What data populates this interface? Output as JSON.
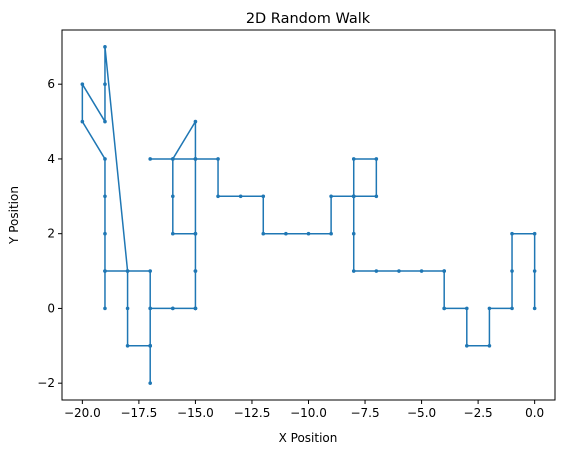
{
  "chart_data": {
    "type": "line",
    "title": "2D Random Walk",
    "xlabel": "X Position",
    "ylabel": "Y Position",
    "xlim": [
      -20.9,
      0.9
    ],
    "ylim": [
      -2.45,
      7.45
    ],
    "x_ticks": [
      -20,
      -17.5,
      -15,
      -12.5,
      -10,
      -7.5,
      -5,
      -2.5,
      0
    ],
    "x_tick_labels": [
      "−20.0",
      "−17.5",
      "−15.0",
      "−12.5",
      "−10.0",
      "−7.5",
      "−5.0",
      "−2.5",
      "0.0"
    ],
    "y_ticks": [
      -2,
      0,
      2,
      4,
      6
    ],
    "y_tick_labels": [
      "−2",
      "0",
      "2",
      "4",
      "6"
    ],
    "grid": false,
    "line_color": "#1f77b4",
    "series": [
      {
        "x": [
          0,
          0,
          0,
          -1,
          -1,
          -1,
          -2,
          -2,
          -3,
          -3,
          -4,
          -4,
          -4,
          -4,
          -5,
          -6,
          -7,
          -8,
          -8,
          -8,
          -8,
          -7,
          -7,
          -8,
          -8,
          -9,
          -9,
          -10,
          -11,
          -12,
          -12,
          -13,
          -14,
          -14,
          -15,
          -15,
          -16,
          -16,
          -16,
          -15,
          -15,
          -15,
          -15,
          -16,
          -17,
          -17,
          -17,
          -17,
          -17,
          -18,
          -18,
          -18,
          -19,
          -19,
          -19,
          -19,
          -19,
          -19,
          -20,
          -20,
          -19,
          -19,
          -19,
          -18,
          -17,
          -17,
          -16,
          -15,
          -15,
          -15,
          -15,
          -16,
          -17
        ],
        "y": [
          0,
          1,
          2,
          2,
          1,
          0,
          0,
          -1,
          -1,
          0,
          0,
          0,
          1,
          1,
          1,
          1,
          1,
          1,
          2,
          3,
          4,
          4,
          3,
          3,
          3,
          3,
          2,
          2,
          2,
          2,
          3,
          3,
          3,
          4,
          4,
          5,
          4,
          3,
          2,
          2,
          1,
          0,
          0,
          0,
          0,
          -1,
          -2,
          -1,
          -1,
          -1,
          0,
          1,
          1,
          0,
          1,
          2,
          3,
          4,
          5,
          6,
          5,
          6,
          7,
          1,
          1,
          0,
          0,
          0,
          1,
          2,
          4,
          4,
          4
        ]
      }
    ]
  }
}
